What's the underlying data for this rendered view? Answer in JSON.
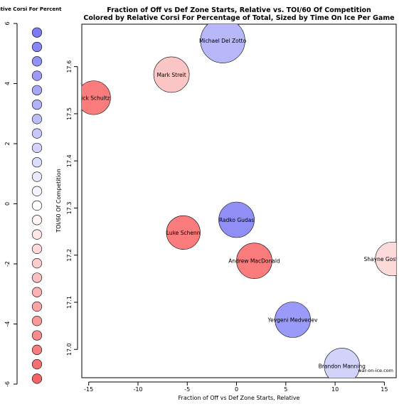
{
  "chart_data": {
    "type": "scatter",
    "title": "Fraction of Off vs Def Zone Starts, Relative vs. TOI/60 Of Competition",
    "subtitle": "Colored by Relative Corsi For Percentage of Total, Sized by Time On Ice Per Game",
    "xlabel": "Fraction of Off vs Def Zone Starts, Relative",
    "ylabel": "TOI/60 Of Competition",
    "xlim": [
      -15.7,
      16.2
    ],
    "ylim": [
      16.94,
      17.69
    ],
    "x_ticks": [
      -15,
      -10,
      -5,
      0,
      5,
      10,
      15
    ],
    "y_ticks": [
      17.0,
      17.1,
      17.2,
      17.3,
      17.4,
      17.5,
      17.6
    ],
    "credit": "war-on-ice.com",
    "points": [
      {
        "label": "Michael Del Zotto",
        "x": -1.4,
        "y": 17.655,
        "color": "#b7b7fa",
        "size": 1.25
      },
      {
        "label": "Mark Streit",
        "x": -6.6,
        "y": 17.583,
        "color": "#fcc6c6",
        "size": 1.0
      },
      {
        "label": "Nick Schultz",
        "x": -14.5,
        "y": 17.534,
        "color": "#fa7c7c",
        "size": 0.95
      },
      {
        "label": "Radko Gudas",
        "x": 0.0,
        "y": 17.275,
        "color": "#8f8ff6",
        "size": 1.0
      },
      {
        "label": "Luke Schenn",
        "x": -5.4,
        "y": 17.248,
        "color": "#fa7c7c",
        "size": 0.95
      },
      {
        "label": "Andrew MacDonald",
        "x": 1.8,
        "y": 17.188,
        "color": "#fa7c7c",
        "size": 1.0
      },
      {
        "label": "Shayne Gostisbehere",
        "x": 15.8,
        "y": 17.192,
        "color": "#fcdada",
        "size": 0.95
      },
      {
        "label": "Yevgeni Medvedev",
        "x": 5.7,
        "y": 17.063,
        "color": "#9a9af8",
        "size": 1.0
      },
      {
        "label": "Brandon Manning",
        "x": 10.7,
        "y": 16.965,
        "color": "#d2d2fb",
        "size": 1.0
      }
    ],
    "legend": {
      "title": "Relative Corsi For Percent",
      "ylim": [
        -6,
        6
      ],
      "ticks": [
        6,
        4,
        2,
        0,
        -2,
        -4,
        -6
      ],
      "swatches": [
        {
          "value": 5.7,
          "color": "#7b7bf4"
        },
        {
          "value": 5.22,
          "color": "#8686f5"
        },
        {
          "value": 4.74,
          "color": "#9191f6"
        },
        {
          "value": 4.26,
          "color": "#9c9cf7"
        },
        {
          "value": 3.78,
          "color": "#a7a7f8"
        },
        {
          "value": 3.3,
          "color": "#b2b2f9"
        },
        {
          "value": 2.82,
          "color": "#bdbdfa"
        },
        {
          "value": 2.34,
          "color": "#c7c7fb"
        },
        {
          "value": 1.86,
          "color": "#d2d2fc"
        },
        {
          "value": 1.38,
          "color": "#ddddfd"
        },
        {
          "value": 0.9,
          "color": "#e8e8fe"
        },
        {
          "value": 0.42,
          "color": "#f3f3ff"
        },
        {
          "value": -0.06,
          "color": "#ffffff"
        },
        {
          "value": -0.54,
          "color": "#fff3f3"
        },
        {
          "value": -1.02,
          "color": "#fee6e6"
        },
        {
          "value": -1.5,
          "color": "#fdd9d9"
        },
        {
          "value": -1.98,
          "color": "#fccccc"
        },
        {
          "value": -2.46,
          "color": "#fbbfbf"
        },
        {
          "value": -2.94,
          "color": "#fab2b2"
        },
        {
          "value": -3.42,
          "color": "#f9a5a5"
        },
        {
          "value": -3.9,
          "color": "#f89898"
        },
        {
          "value": -4.38,
          "color": "#f78b8b"
        },
        {
          "value": -4.86,
          "color": "#f67e7e"
        },
        {
          "value": -5.34,
          "color": "#f57171"
        },
        {
          "value": -5.82,
          "color": "#f46464"
        }
      ]
    }
  }
}
